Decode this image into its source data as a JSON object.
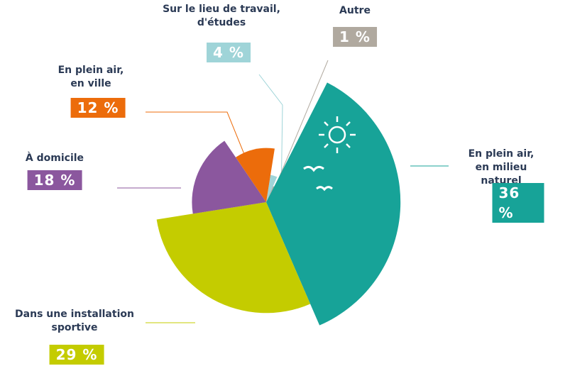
{
  "chart_data": {
    "type": "pie",
    "categories": [
      "Sur le lieu de travail,\nd'études",
      "Autre",
      "En plein air,\nen milieu naturel",
      "Dans une installation\nsportive",
      "À domicile",
      "En plein air,\nen ville"
    ],
    "values": [
      4,
      1,
      36,
      29,
      18,
      12
    ],
    "value_labels": [
      "4 %",
      "1 %",
      "36 %",
      "29 %",
      "18 %",
      "12 %"
    ],
    "colors": [
      "#9fd4d8",
      "#b0a99f",
      "#17a398",
      "#c4cc00",
      "#8b579e",
      "#ec6c0b"
    ]
  }
}
